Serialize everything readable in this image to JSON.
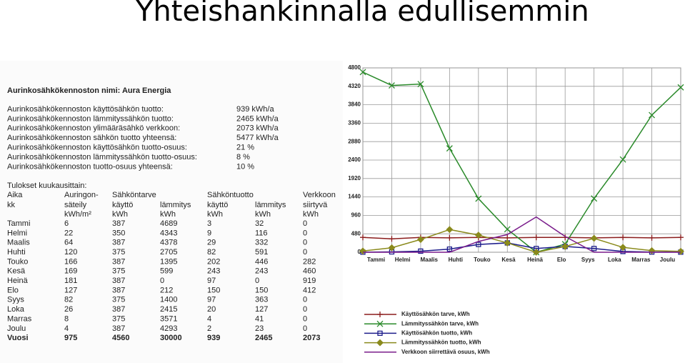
{
  "title": "Yhteishankinnalla edullisemmin",
  "summary": {
    "heading": "Aurinkosähkökennoston nimi: Aura Energia",
    "rows": [
      [
        "Aurinkosähkökennoston käyttösähkön tuotto:",
        "939 kWh/a"
      ],
      [
        "Aurinkosähkökennoston lämmityssähkön tuotto:",
        "2465 kWh/a"
      ],
      [
        "Aurinkosähkökennoston ylimääräsähkö verkkoon:",
        "2073 kWh/a"
      ],
      [
        "Aurinkosähkökennoston sähkön tuotto yhteensä:",
        "5477 kWh/a"
      ],
      [
        "Aurinkosähkökennoston käyttösähkön tuotto-osuus:",
        "21 %"
      ],
      [
        "Aurinkosähkökennoston lämmityssähkön tuotto-osuus:",
        "8 %"
      ],
      [
        "Aurinkosähkökennoston tuotto-osuus yhteensä:",
        "10 %"
      ]
    ]
  },
  "table": {
    "caption": "Tulokset kuukausittain:",
    "header": [
      [
        "Aika",
        "Auringon-",
        "Sähköntarve",
        "Sähköntuotto",
        "Verkkoon"
      ],
      [
        "kk",
        "säteily",
        "käyttö",
        "lämmitys",
        "käyttö",
        "lämmitys",
        "siirtyvä"
      ],
      [
        "kWh/m²",
        "kWh",
        "kWh",
        "kWh",
        "kWh",
        "kWh"
      ]
    ],
    "rows": [
      [
        "Tammi",
        6,
        387,
        4689,
        3,
        32,
        0
      ],
      [
        "Helmi",
        22,
        350,
        4343,
        9,
        116,
        0
      ],
      [
        "Maalis",
        64,
        387,
        4378,
        29,
        332,
        0
      ],
      [
        "Huhti",
        120,
        375,
        2705,
        82,
        591,
        0
      ],
      [
        "Touko",
        166,
        387,
        1395,
        202,
        446,
        282
      ],
      [
        "Kesä",
        169,
        375,
        599,
        243,
        243,
        460
      ],
      [
        "Heinä",
        181,
        387,
        0,
        97,
        0,
        919
      ],
      [
        "Elo",
        127,
        387,
        212,
        150,
        150,
        412
      ],
      [
        "Syys",
        82,
        375,
        1400,
        97,
        363,
        0
      ],
      [
        "Loka",
        26,
        387,
        2415,
        20,
        127,
        0
      ],
      [
        "Marras",
        8,
        375,
        3571,
        4,
        41,
        0
      ],
      [
        "Joulu",
        4,
        387,
        4293,
        2,
        23,
        0
      ]
    ],
    "total": [
      "Vuosi",
      975,
      4560,
      30000,
      939,
      2465,
      2073
    ]
  },
  "chart_data": {
    "type": "line",
    "categories": [
      "Tammi",
      "Helmi",
      "Maalis",
      "Huhti",
      "Touko",
      "Kesä",
      "Heinä",
      "Elo",
      "Syys",
      "Loka",
      "Marras",
      "Joulu"
    ],
    "ylim": [
      0,
      4800
    ],
    "yticks": [
      0,
      480,
      960,
      1440,
      1920,
      2400,
      2880,
      3360,
      3840,
      4320,
      4800
    ],
    "grid": true,
    "series": [
      {
        "name": "Käyttösähkön tarve, kWh",
        "color": "#8b1c1c",
        "marker": "plus",
        "values": [
          387,
          350,
          387,
          375,
          387,
          375,
          387,
          387,
          375,
          387,
          375,
          387
        ]
      },
      {
        "name": "Lämmityssähkön tarve, kWh",
        "color": "#2a8a2a",
        "marker": "x",
        "values": [
          4689,
          4343,
          4378,
          2705,
          1395,
          599,
          0,
          212,
          1400,
          2415,
          3571,
          4293
        ]
      },
      {
        "name": "Käyttösähkön tuotto, kWh",
        "color": "#1c1c8b",
        "marker": "square",
        "values": [
          3,
          9,
          29,
          82,
          202,
          243,
          97,
          150,
          97,
          20,
          4,
          2
        ]
      },
      {
        "name": "Lämmityssähkön tuotto, kWh",
        "color": "#8a8a1c",
        "marker": "diamond",
        "values": [
          32,
          116,
          332,
          591,
          446,
          243,
          0,
          150,
          363,
          127,
          41,
          23
        ]
      },
      {
        "name": "Verkkoon siirrettävä osuus, kWh",
        "color": "#7a1c8b",
        "values": [
          0,
          0,
          0,
          0,
          282,
          460,
          919,
          412,
          0,
          0,
          0,
          0
        ]
      }
    ]
  }
}
